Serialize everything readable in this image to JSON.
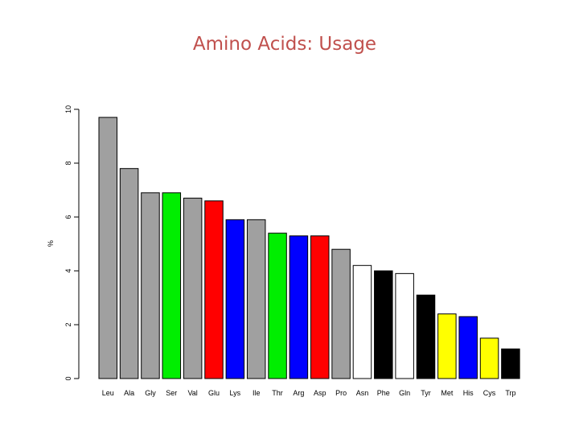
{
  "chart_data": {
    "type": "bar",
    "title": "Amino Acids: Usage",
    "xlabel": "",
    "ylabel": "%",
    "ylim": [
      0,
      10
    ],
    "yticks": [
      "0",
      "2",
      "4",
      "6",
      "8",
      "10"
    ],
    "grid": false,
    "categories": [
      "Leu",
      "Ala",
      "Gly",
      "Ser",
      "Val",
      "Glu",
      "Lys",
      "Ile",
      "Thr",
      "Arg",
      "Asp",
      "Pro",
      "Asn",
      "Phe",
      "Gln",
      "Tyr",
      "Met",
      "His",
      "Cys",
      "Trp"
    ],
    "values": [
      9.7,
      7.8,
      6.9,
      6.9,
      6.7,
      6.6,
      5.9,
      5.9,
      5.4,
      5.3,
      5.3,
      4.8,
      4.2,
      4.0,
      3.9,
      3.1,
      2.4,
      2.3,
      1.5,
      1.1
    ],
    "colors": [
      "#a0a0a0",
      "#a0a0a0",
      "#a0a0a0",
      "#00ee00",
      "#a0a0a0",
      "#ff0000",
      "#0000ff",
      "#a0a0a0",
      "#00ee00",
      "#0000ff",
      "#ff0000",
      "#a0a0a0",
      "#ffffff",
      "#000000",
      "#ffffff",
      "#000000",
      "#ffff00",
      "#0000ff",
      "#ffff00",
      "#000000"
    ]
  }
}
